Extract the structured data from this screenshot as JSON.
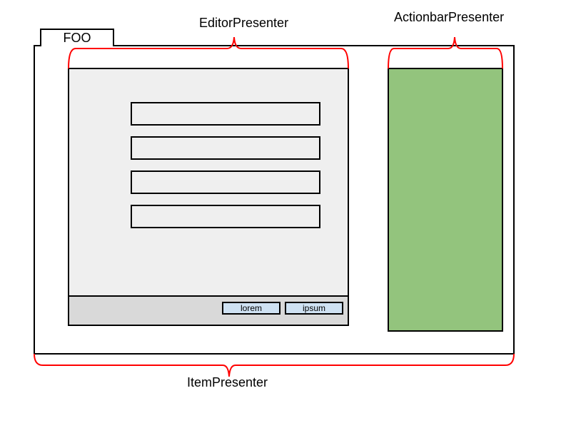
{
  "tab": {
    "label": "FOO"
  },
  "labels": {
    "editor": "EditorPresenter",
    "actionbar": "ActionbarPresenter",
    "item": "ItemPresenter"
  },
  "editor": {
    "fields": [
      "",
      "",
      "",
      ""
    ],
    "buttons": {
      "lorem": "lorem",
      "ipsum": "ipsum"
    }
  },
  "colors": {
    "brace": "#ff0000",
    "editor_bg": "#efefef",
    "footer_bg": "#d9d9d9",
    "button_bg": "#cfe2f3",
    "actionbar_bg": "#93c47d"
  }
}
